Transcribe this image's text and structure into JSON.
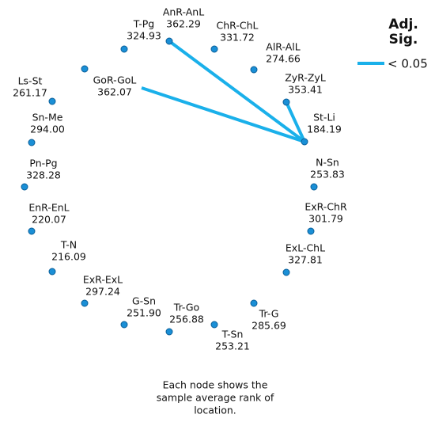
{
  "nodes": [
    {
      "label": "T-Pg",
      "value": "324.93"
    },
    {
      "label": "AnR-AnL",
      "value": "362.29"
    },
    {
      "label": "ChR-ChL",
      "value": "331.72"
    },
    {
      "label": "AlR-AlL",
      "value": "274.66"
    },
    {
      "label": "ZyR-ZyL",
      "value": "353.41"
    },
    {
      "label": "St-Li",
      "value": "184.19"
    },
    {
      "label": "N-Sn",
      "value": "253.83"
    },
    {
      "label": "ExR-ChR",
      "value": "301.79"
    },
    {
      "label": "ExL-ChL",
      "value": "327.81"
    },
    {
      "label": "Tr-G",
      "value": "285.69"
    },
    {
      "label": "T-Sn",
      "value": "253.21"
    },
    {
      "label": "Tr-Go",
      "value": "256.88"
    },
    {
      "label": "G-Sn",
      "value": "251.90"
    },
    {
      "label": "ExR-ExL",
      "value": "297.24"
    },
    {
      "label": "T-N",
      "value": "216.09"
    },
    {
      "label": "EnR-EnL",
      "value": "220.07"
    },
    {
      "label": "Pn-Pg",
      "value": "328.28"
    },
    {
      "label": "Sn-Me",
      "value": "294.00"
    },
    {
      "label": "Ls-St",
      "value": "261.17"
    },
    {
      "label": "GoR-GoL",
      "value": "362.07"
    }
  ],
  "legend": {
    "title_lines": [
      "Adj.",
      "Sig."
    ],
    "label": "< 0.05"
  },
  "caption": [
    "Each node shows the",
    "sample average rank of",
    "location."
  ]
}
